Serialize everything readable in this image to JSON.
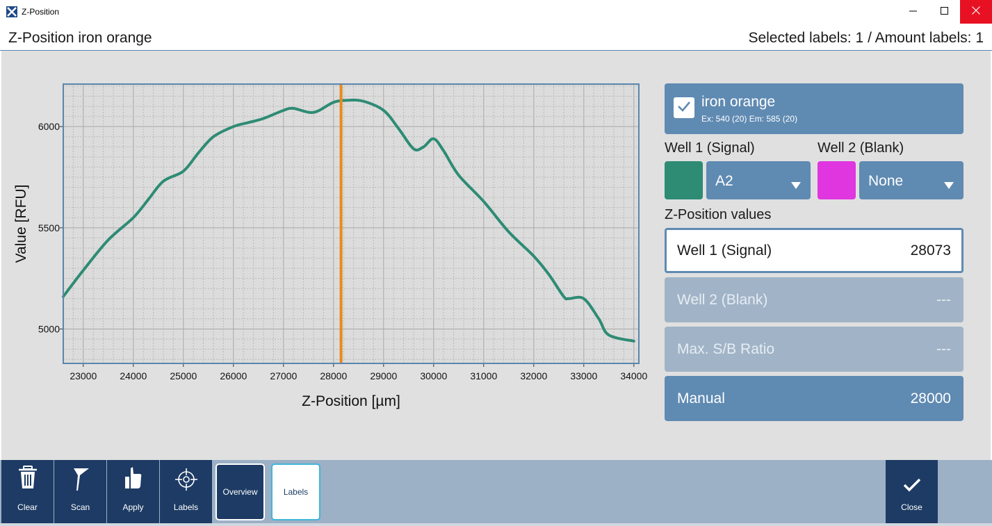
{
  "window": {
    "title": "Z-Position",
    "controls": [
      "minimize-icon",
      "maximize-icon",
      "close-icon"
    ],
    "close_color": "#e81123"
  },
  "header": {
    "title": "Z-Position iron orange",
    "status": "Selected labels: 1 / Amount labels: 1"
  },
  "chart_data": {
    "type": "line",
    "xlabel": "Z-Position [µm]",
    "ylabel": "Value [RFU]",
    "xlim": [
      22600,
      34100
    ],
    "ylim": [
      4830,
      6210
    ],
    "x_ticks": [
      23000,
      24000,
      25000,
      26000,
      27000,
      28000,
      29000,
      30000,
      31000,
      32000,
      33000,
      34000
    ],
    "y_ticks": [
      5000,
      5500,
      6000
    ],
    "grid": true,
    "series": [
      {
        "color": "#2e8b74",
        "x": [
          22600,
          23000,
          23500,
          24000,
          24300,
          24600,
          25000,
          25300,
          25600,
          26000,
          26300,
          26600,
          27000,
          27200,
          27600,
          28000,
          28300,
          28600,
          29000,
          29300,
          29600,
          29800,
          30000,
          30200,
          30500,
          31000,
          31500,
          32000,
          32300,
          32600,
          32700,
          33000,
          33300,
          33500,
          34000
        ],
        "y": [
          5160,
          5290,
          5440,
          5550,
          5640,
          5730,
          5780,
          5870,
          5950,
          6000,
          6020,
          6040,
          6080,
          6090,
          6070,
          6120,
          6130,
          6125,
          6080,
          5990,
          5890,
          5900,
          5940,
          5880,
          5760,
          5630,
          5480,
          5360,
          5270,
          5160,
          5150,
          5150,
          5050,
          4970,
          4940
        ]
      }
    ],
    "marker": {
      "x": 28150,
      "color": "#e88a1a"
    }
  },
  "label_card": {
    "name": "iron orange",
    "details": "Ex: 540 (20) Em: 585 (20)",
    "checked": true
  },
  "wells": {
    "well1_heading": "Well 1 (Signal)",
    "well1_color": "#2e8b74",
    "well1_value": "A2",
    "well2_heading": "Well 2 (Blank)",
    "well2_color": "#df36df",
    "well2_value": "None"
  },
  "zpos": {
    "heading": "Z-Position values",
    "rows": [
      {
        "label": "Well 1 (Signal)",
        "value": "28073"
      },
      {
        "label": "Well 2 (Blank)",
        "value": "---"
      },
      {
        "label": "Max. S/B Ratio",
        "value": "---"
      },
      {
        "label": "Manual",
        "value": "28000"
      }
    ]
  },
  "toolbar": {
    "clear": "Clear",
    "scan": "Scan",
    "apply": "Apply",
    "labels": "Labels",
    "overview_toggle": "Overview",
    "labels_toggle": "Labels",
    "close": "Close"
  }
}
